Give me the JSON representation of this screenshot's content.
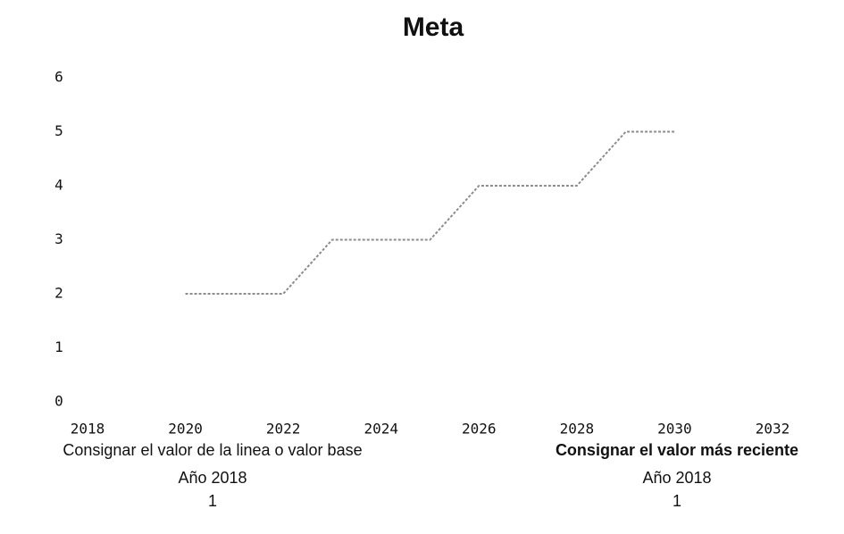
{
  "chart_data": {
    "type": "line",
    "title": "Meta",
    "x": [
      2020,
      2021,
      2022,
      2023,
      2024,
      2025,
      2026,
      2027,
      2028,
      2029,
      2030
    ],
    "series": [
      {
        "name": "Meta",
        "color": "#8c8c8c",
        "values": [
          2,
          2,
          2,
          3,
          3,
          3,
          4,
          4,
          4,
          5,
          5
        ]
      }
    ],
    "xlim": [
      2018,
      2032
    ],
    "xticks": [
      2018,
      2020,
      2022,
      2024,
      2026,
      2028,
      2030,
      2032
    ],
    "ylim": [
      0,
      6
    ],
    "yticks": [
      0,
      1,
      2,
      3,
      4,
      5,
      6
    ],
    "grid": false,
    "legend": false
  },
  "notes": [
    {
      "label": "Consignar el valor de la linea o valor base",
      "year": "Año 2018",
      "value": 1
    },
    {
      "label": "Consignar el valor más reciente",
      "year": "Año 2018",
      "value": 1
    }
  ]
}
